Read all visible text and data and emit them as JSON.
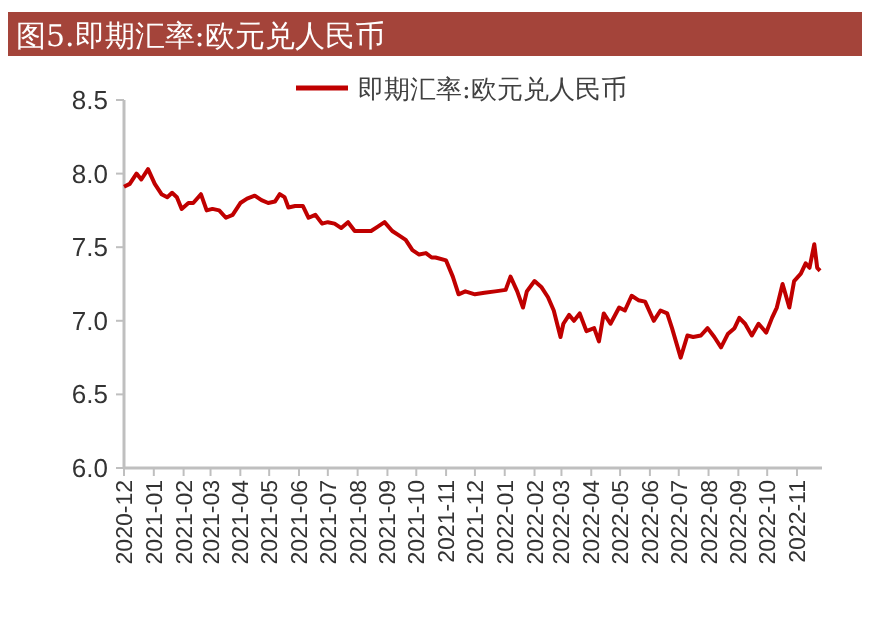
{
  "chart_data": {
    "type": "line",
    "title": "图5.即期汇率:欧元兑人民币",
    "x": [
      "2020-12-01",
      "2020-12-07",
      "2020-12-14",
      "2020-12-19",
      "2020-12-26",
      "2021-01-02",
      "2021-01-09",
      "2021-01-15",
      "2021-01-20",
      "2021-01-25",
      "2021-01-30",
      "2021-02-06",
      "2021-02-11",
      "2021-02-19",
      "2021-02-25",
      "2021-03-03",
      "2021-03-10",
      "2021-03-17",
      "2021-03-24",
      "2021-04-01",
      "2021-04-08",
      "2021-04-16",
      "2021-04-23",
      "2021-04-30",
      "2021-05-07",
      "2021-05-12",
      "2021-05-17",
      "2021-05-21",
      "2021-05-28",
      "2021-06-05",
      "2021-06-11",
      "2021-06-18",
      "2021-06-25",
      "2021-07-01",
      "2021-07-08",
      "2021-07-15",
      "2021-07-22",
      "2021-07-29",
      "2021-08-08",
      "2021-08-15",
      "2021-08-22",
      "2021-08-29",
      "2021-09-06",
      "2021-09-13",
      "2021-09-20",
      "2021-09-27",
      "2021-10-04",
      "2021-10-11",
      "2021-10-17",
      "2021-10-21",
      "2021-11-01",
      "2021-11-08",
      "2021-11-14",
      "2021-11-21",
      "2021-12-01",
      "2021-12-11",
      "2021-12-22",
      "2022-01-02",
      "2022-01-07",
      "2022-01-14",
      "2022-01-20",
      "2022-01-24",
      "2022-02-01",
      "2022-02-08",
      "2022-02-15",
      "2022-02-21",
      "2022-02-28",
      "2022-03-03",
      "2022-03-09",
      "2022-03-14",
      "2022-03-20",
      "2022-03-27",
      "2022-04-04",
      "2022-04-09",
      "2022-04-14",
      "2022-04-21",
      "2022-04-30",
      "2022-05-06",
      "2022-05-13",
      "2022-05-20",
      "2022-05-27",
      "2022-06-05",
      "2022-06-12",
      "2022-06-19",
      "2022-06-24",
      "2022-07-03",
      "2022-07-10",
      "2022-07-16",
      "2022-07-24",
      "2022-07-31",
      "2022-08-07",
      "2022-08-14",
      "2022-08-21",
      "2022-08-28",
      "2022-09-02",
      "2022-09-08",
      "2022-09-15",
      "2022-09-22",
      "2022-09-30",
      "2022-10-06",
      "2022-10-11",
      "2022-10-17",
      "2022-10-24",
      "2022-10-29",
      "2022-11-05",
      "2022-11-10",
      "2022-11-14",
      "2022-11-19",
      "2022-11-22",
      "2022-11-25"
    ],
    "series": [
      {
        "name": "即期汇率:欧元兑人民币",
        "color": "#c00000",
        "values": [
          7.91,
          7.93,
          8.0,
          7.96,
          8.03,
          7.93,
          7.86,
          7.84,
          7.87,
          7.84,
          7.76,
          7.8,
          7.8,
          7.86,
          7.75,
          7.76,
          7.75,
          7.7,
          7.72,
          7.8,
          7.83,
          7.85,
          7.82,
          7.8,
          7.81,
          7.86,
          7.84,
          7.77,
          7.78,
          7.78,
          7.7,
          7.72,
          7.66,
          7.67,
          7.66,
          7.63,
          7.67,
          7.61,
          7.61,
          7.61,
          7.64,
          7.67,
          7.61,
          7.58,
          7.55,
          7.48,
          7.45,
          7.46,
          7.43,
          7.43,
          7.41,
          7.3,
          7.18,
          7.2,
          7.18,
          7.19,
          7.2,
          7.21,
          7.3,
          7.2,
          7.09,
          7.2,
          7.27,
          7.23,
          7.16,
          7.07,
          6.89,
          6.98,
          7.04,
          7.0,
          7.05,
          6.93,
          6.95,
          6.86,
          7.05,
          6.98,
          7.09,
          7.07,
          7.17,
          7.14,
          7.13,
          7.0,
          7.07,
          7.05,
          6.95,
          6.75,
          6.9,
          6.89,
          6.9,
          6.95,
          6.89,
          6.82,
          6.91,
          6.95,
          7.02,
          6.98,
          6.9,
          6.98,
          6.92,
          7.02,
          7.09,
          7.25,
          7.09,
          7.27,
          7.32,
          7.39,
          7.36,
          7.52,
          7.36,
          7.34
        ]
      }
    ],
    "xlim": [
      "2020-12-01",
      "2022-11-27"
    ],
    "xticks": [
      {
        "value": "2020-12-01",
        "label": "2020-12"
      },
      {
        "value": "2021-01-01",
        "label": "2021-01"
      },
      {
        "value": "2021-02-01",
        "label": "2021-02"
      },
      {
        "value": "2021-03-01",
        "label": "2021-03"
      },
      {
        "value": "2021-04-01",
        "label": "2021-04"
      },
      {
        "value": "2021-05-01",
        "label": "2021-05"
      },
      {
        "value": "2021-06-01",
        "label": "2021-06"
      },
      {
        "value": "2021-07-01",
        "label": "2021-07"
      },
      {
        "value": "2021-08-01",
        "label": "2021-08"
      },
      {
        "value": "2021-09-01",
        "label": "2021-09"
      },
      {
        "value": "2021-10-01",
        "label": "2021-10"
      },
      {
        "value": "2021-11-01",
        "label": "2021-11"
      },
      {
        "value": "2021-12-01",
        "label": "2021-12"
      },
      {
        "value": "2022-01-01",
        "label": "2022-01"
      },
      {
        "value": "2022-02-01",
        "label": "2022-02"
      },
      {
        "value": "2022-03-01",
        "label": "2022-03"
      },
      {
        "value": "2022-04-01",
        "label": "2022-04"
      },
      {
        "value": "2022-05-01",
        "label": "2022-05"
      },
      {
        "value": "2022-06-01",
        "label": "2022-06"
      },
      {
        "value": "2022-07-01",
        "label": "2022-07"
      },
      {
        "value": "2022-08-01",
        "label": "2022-08"
      },
      {
        "value": "2022-09-01",
        "label": "2022-09"
      },
      {
        "value": "2022-10-01",
        "label": "2022-10"
      },
      {
        "value": "2022-11-01",
        "label": "2022-11"
      }
    ],
    "ylim": [
      6.0,
      8.5
    ],
    "yticks": [
      {
        "value": 6,
        "label": "6.0"
      },
      6.5,
      {
        "value": 7,
        "label": "7.0"
      },
      7.5,
      {
        "value": 8,
        "label": "8.0"
      },
      8.5
    ],
    "legend": "top",
    "grid": false,
    "marker": "none",
    "line_style": "solid"
  }
}
